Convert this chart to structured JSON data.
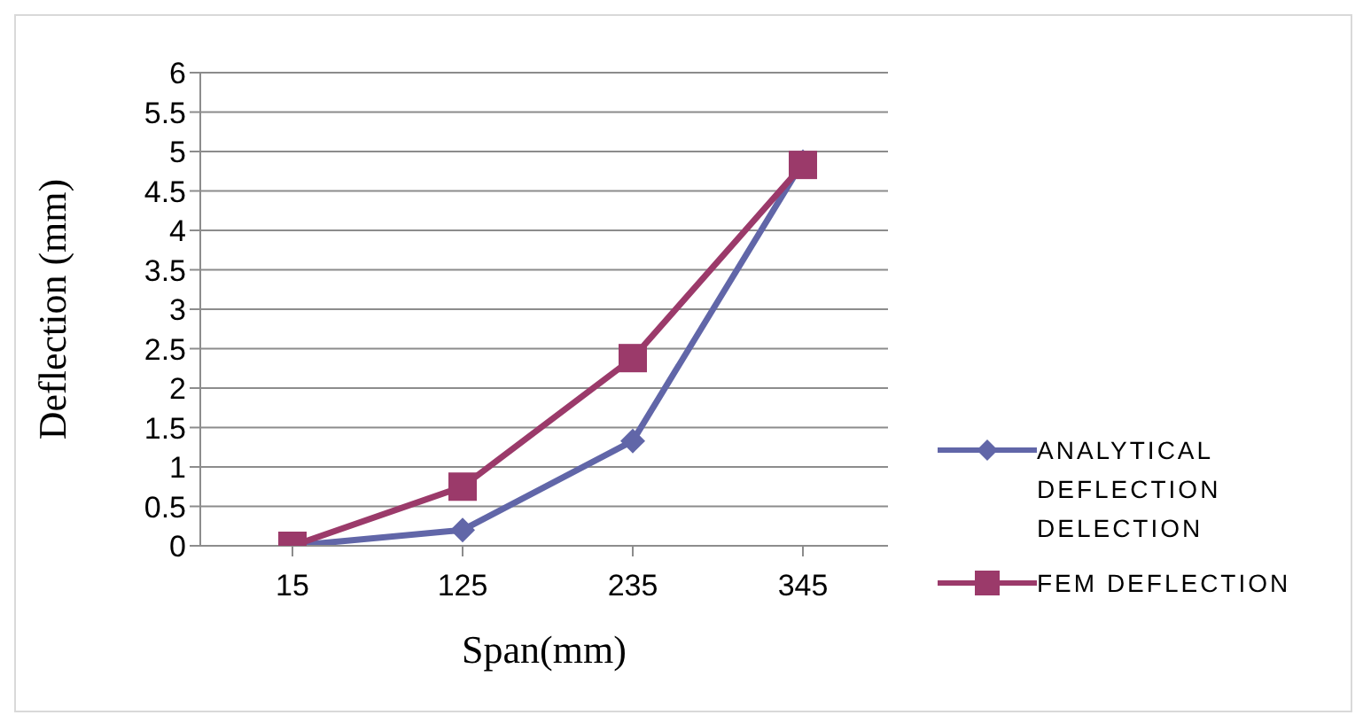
{
  "chart_data": {
    "type": "line",
    "xlabel": "Span(mm)",
    "ylabel": "Deflection (mm)",
    "categories": [
      "15",
      "125",
      "235",
      "345"
    ],
    "series": [
      {
        "name": "ANALYTICAL DEFLECTION DELECTION",
        "color": "#6166a8",
        "marker": "diamond",
        "values": [
          0,
          0.2,
          1.33,
          4.87
        ]
      },
      {
        "name": "FEM DEFLECTION",
        "color": "#9b3a6a",
        "marker": "square",
        "values": [
          0,
          0.75,
          2.38,
          4.83
        ]
      }
    ],
    "ylim": [
      0,
      6
    ],
    "yticks": [
      0,
      0.5,
      1,
      1.5,
      2,
      2.5,
      3,
      3.5,
      4,
      4.5,
      5,
      5.5,
      6
    ],
    "grid": "y",
    "legend": "right"
  }
}
